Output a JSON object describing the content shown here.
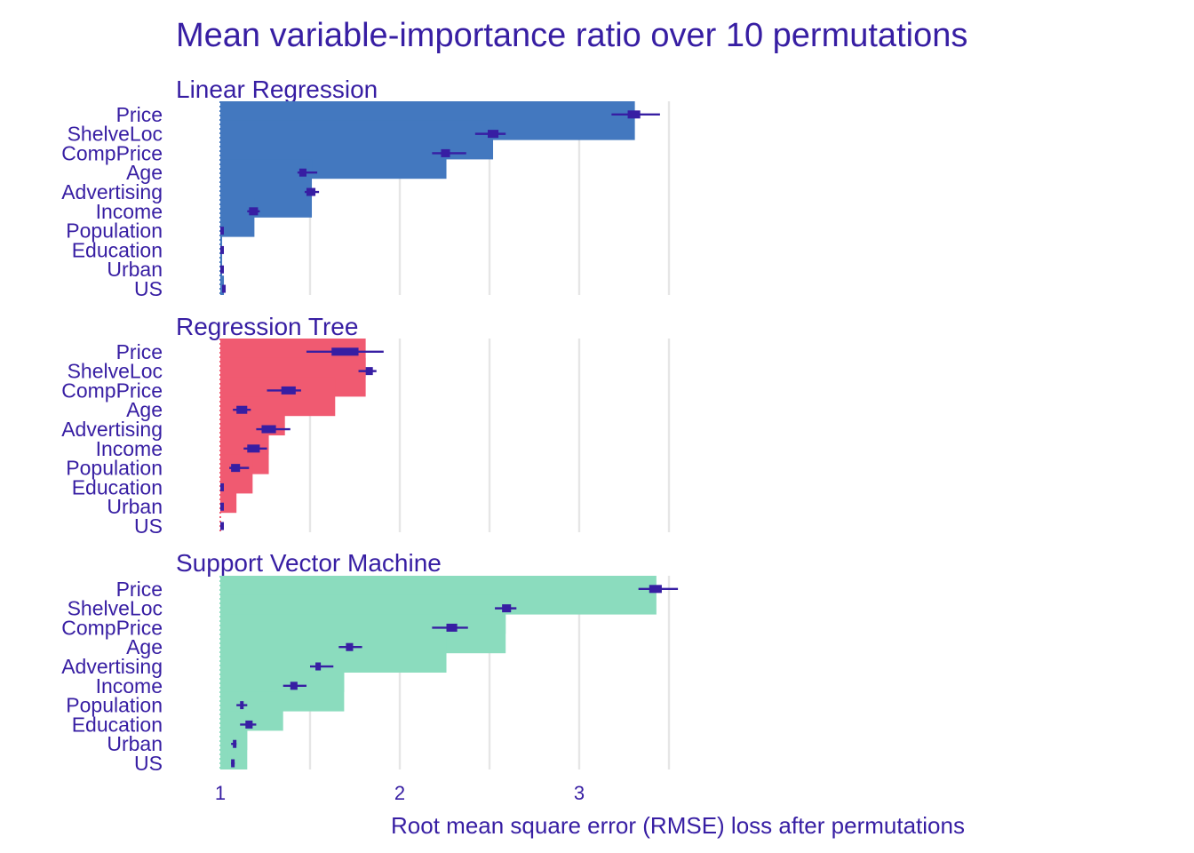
{
  "chart_data": {
    "type": "bar",
    "title": "Mean variable-importance ratio over 10 permutations",
    "xlabel": "Root mean square error (RMSE) loss after permutations",
    "ylabel": "",
    "xlim": [
      1,
      3
    ],
    "xticks": [
      1,
      2,
      3
    ],
    "baseline": 1,
    "grid": true,
    "colors": {
      "text": "#371ea3",
      "whisker": "#371ea3",
      "grid": "#e6e6e6"
    },
    "categories": [
      "Price",
      "ShelveLoc",
      "CompPrice",
      "Age",
      "Advertising",
      "Income",
      "Population",
      "Education",
      "Urban",
      "US"
    ],
    "panels": [
      {
        "name": "Linear Regression",
        "color": "#4378bf",
        "values": [
          3.31,
          2.52,
          2.26,
          1.51,
          1.51,
          1.19,
          1.01,
          1.01,
          1.01,
          1.02
        ],
        "box_low": [
          3.27,
          2.49,
          2.23,
          1.44,
          1.48,
          1.16,
          1.0,
          1.0,
          1.0,
          1.01
        ],
        "box_high": [
          3.34,
          2.55,
          2.28,
          1.48,
          1.53,
          1.21,
          1.01,
          1.01,
          1.01,
          1.02
        ],
        "whisker_low": [
          3.18,
          2.42,
          2.18,
          1.43,
          1.47,
          1.15,
          1.0,
          1.0,
          1.0,
          1.01
        ],
        "whisker_high": [
          3.45,
          2.59,
          2.37,
          1.54,
          1.55,
          1.22,
          1.01,
          1.01,
          1.01,
          1.02
        ],
        "median": [
          3.31,
          2.52,
          2.26,
          1.46,
          1.51,
          1.19,
          1.01,
          1.01,
          1.01,
          1.02
        ]
      },
      {
        "name": "Regression Tree",
        "color": "#f05a71",
        "values": [
          1.81,
          1.81,
          1.64,
          1.36,
          1.27,
          1.27,
          1.18,
          1.09,
          1.0,
          1.0
        ],
        "box_low": [
          1.62,
          1.81,
          1.34,
          1.09,
          1.23,
          1.15,
          1.06,
          1.0,
          1.0,
          1.0
        ],
        "box_high": [
          1.77,
          1.85,
          1.42,
          1.15,
          1.31,
          1.22,
          1.11,
          1.01,
          1.0,
          1.0
        ],
        "whisker_low": [
          1.48,
          1.77,
          1.26,
          1.07,
          1.2,
          1.13,
          1.05,
          1.0,
          1.0,
          1.0
        ],
        "whisker_high": [
          1.91,
          1.87,
          1.45,
          1.17,
          1.39,
          1.26,
          1.16,
          1.01,
          1.0,
          1.0
        ],
        "median": [
          1.67,
          1.83,
          1.37,
          1.12,
          1.26,
          1.17,
          1.08,
          1.0,
          1.0,
          1.0
        ]
      },
      {
        "name": "Support Vector Machine",
        "color": "#8bdcbe",
        "values": [
          3.43,
          2.59,
          2.59,
          2.26,
          1.69,
          1.69,
          1.35,
          1.15,
          1.15,
          1.04
        ],
        "box_low": [
          3.39,
          2.57,
          2.26,
          1.7,
          1.53,
          1.39,
          1.11,
          1.14,
          1.07,
          1.06
        ],
        "box_high": [
          3.46,
          2.62,
          2.32,
          1.74,
          1.56,
          1.43,
          1.13,
          1.18,
          1.08,
          1.07
        ],
        "whisker_low": [
          3.33,
          2.53,
          2.18,
          1.66,
          1.5,
          1.35,
          1.09,
          1.11,
          1.06,
          1.06
        ],
        "whisker_high": [
          3.55,
          2.65,
          2.38,
          1.79,
          1.63,
          1.48,
          1.15,
          1.2,
          1.09,
          1.08
        ],
        "median": [
          3.43,
          2.59,
          2.29,
          1.72,
          1.55,
          1.41,
          1.12,
          1.16,
          1.07,
          1.07
        ]
      }
    ]
  }
}
